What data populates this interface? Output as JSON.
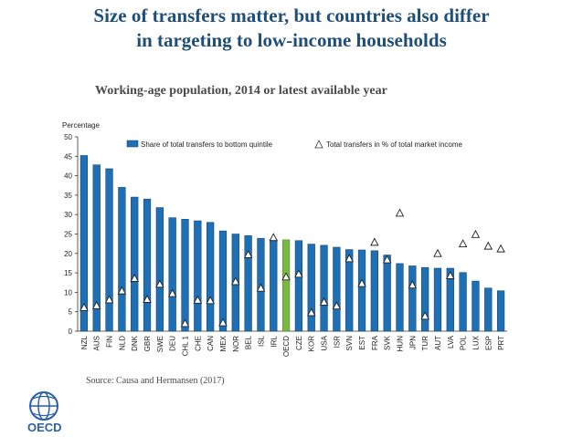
{
  "slide": {
    "title_line1": "Size of transfers matter, but countries also differ",
    "title_line2": "in targeting to low-income households",
    "subtitle": "Working-age population, 2014 or latest available year",
    "source": "Source: Causa and Hermansen (2017)",
    "logo_text": "OECD"
  },
  "colors": {
    "title": "#1f4e79",
    "bar": "#1f6fb4",
    "bar_highlight": "#79b843",
    "marker_fill": "#ffffff",
    "logo_blue": "#2b5fa8"
  },
  "chart_data": {
    "type": "bar",
    "ylabel": "Percentage",
    "ylim": [
      0,
      50
    ],
    "yticks": [
      0,
      5,
      10,
      15,
      20,
      25,
      30,
      35,
      40,
      45,
      50
    ],
    "grid": false,
    "legend_position": "top",
    "highlight_category": "OECD",
    "categories": [
      "NZL",
      "AUS",
      "FIN",
      "NLD",
      "DNK",
      "GBR",
      "SWE",
      "DEU",
      "CHL 1",
      "CHE",
      "CAN",
      "MEX",
      "NOR",
      "BEL",
      "ISL",
      "IRL",
      "OECD",
      "CZE",
      "KOR",
      "USA",
      "ISR",
      "SVN",
      "EST",
      "FRA",
      "SVK",
      "HUN",
      "JPN",
      "TUR",
      "AUT",
      "LVA",
      "POL",
      "LUX",
      "ESP",
      "PRT"
    ],
    "series": [
      {
        "name": "Share of total transfers to bottom quintile",
        "kind": "bar",
        "values": [
          45.2,
          42.8,
          41.8,
          37.0,
          34.5,
          34.0,
          31.8,
          29.2,
          28.8,
          28.4,
          28.0,
          25.8,
          25.0,
          24.6,
          23.9,
          23.6,
          23.5,
          23.3,
          22.4,
          22.1,
          21.6,
          21.0,
          20.9,
          20.7,
          19.6,
          17.4,
          16.8,
          16.4,
          16.2,
          16.2,
          15.1,
          12.9,
          11.1,
          10.4
        ]
      },
      {
        "name": "Total transfers in % of total market income",
        "kind": "marker",
        "values": [
          6.0,
          6.5,
          8.0,
          10.3,
          13.5,
          8.1,
          12.0,
          9.6,
          1.9,
          7.9,
          7.8,
          2.1,
          12.7,
          19.6,
          11.0,
          24.0,
          13.9,
          14.6,
          4.7,
          7.4,
          6.4,
          18.6,
          12.2,
          22.8,
          18.3,
          30.3,
          11.8,
          3.8,
          19.9,
          14.2,
          22.4,
          24.8,
          21.8,
          21.1
        ]
      }
    ]
  }
}
